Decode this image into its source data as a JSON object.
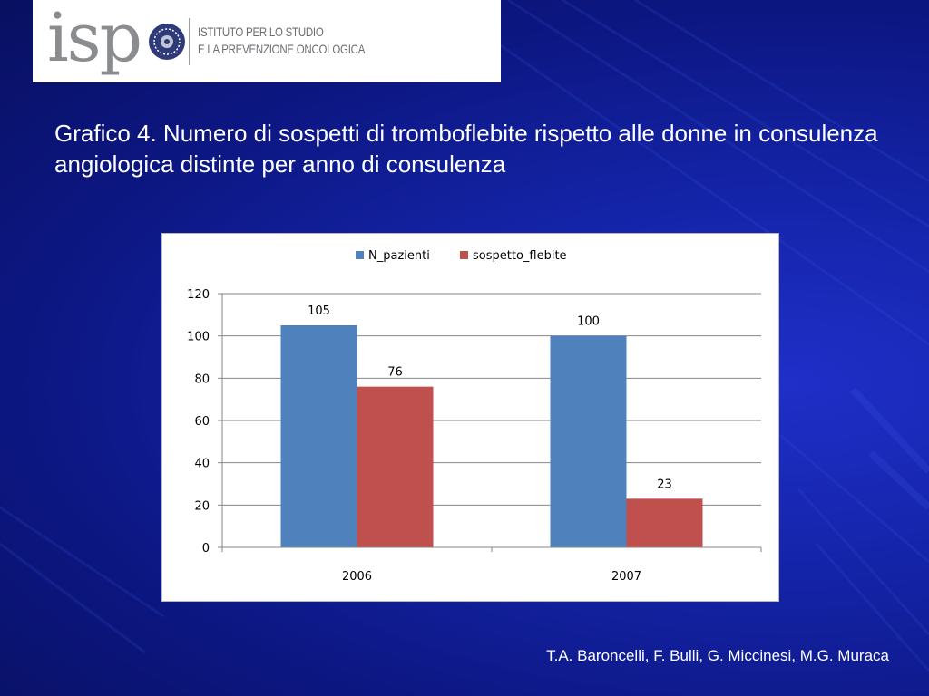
{
  "logo": {
    "wordmark": "isp",
    "line1": "ISTITUTO PER LO STUDIO",
    "line2": "E LA PREVENZIONE ONCOLOGICA"
  },
  "slide": {
    "title": "Grafico 4. Numero di sospetti di tromboflebite rispetto alle donne in consulenza angiologica distinte per anno di consulenza",
    "author": "T.A. Baroncelli, F. Bulli, G. Miccinesi, M.G. Muraca"
  },
  "colors": {
    "N_pazienti": "#4f81bd",
    "sospetto_flebite": "#c0504d"
  },
  "chart_data": {
    "type": "bar",
    "categories": [
      "2006",
      "2007"
    ],
    "series": [
      {
        "name": "N_pazienti",
        "values": [
          105,
          100
        ]
      },
      {
        "name": "sospetto_flebite",
        "values": [
          76,
          23
        ]
      }
    ],
    "ylim": [
      0,
      120
    ],
    "yticks": [
      0,
      20,
      40,
      60,
      80,
      100,
      120
    ],
    "grid": true,
    "legend": "top"
  }
}
